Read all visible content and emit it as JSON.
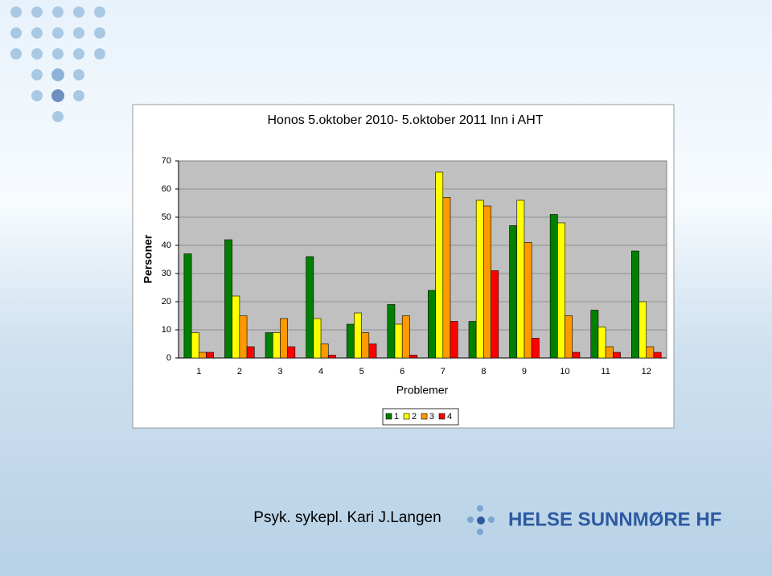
{
  "chart_data": {
    "type": "bar",
    "title": "Honos 5.oktober 2010- 5.oktober 2011 Inn i AHT",
    "y_label": "Personer",
    "x_label": "Problemer",
    "categories": [
      "1",
      "2",
      "3",
      "4",
      "5",
      "6",
      "7",
      "8",
      "9",
      "10",
      "11",
      "12"
    ],
    "series": [
      {
        "name": "1",
        "color": "#008000",
        "values": [
          37,
          42,
          9,
          36,
          12,
          19,
          24,
          13,
          47,
          51,
          17,
          38
        ]
      },
      {
        "name": "2",
        "color": "#ffff00",
        "values": [
          9,
          22,
          9,
          14,
          16,
          12,
          66,
          56,
          56,
          48,
          11,
          20
        ]
      },
      {
        "name": "3",
        "color": "#ff9900",
        "values": [
          2,
          15,
          14,
          5,
          9,
          15,
          57,
          54,
          41,
          15,
          4,
          4
        ]
      },
      {
        "name": "4",
        "color": "#ff0000",
        "values": [
          2,
          4,
          4,
          1,
          5,
          1,
          13,
          31,
          7,
          2,
          2,
          2
        ]
      }
    ],
    "ylim": [
      0,
      70
    ],
    "yticks": [
      0,
      10,
      20,
      30,
      40,
      50,
      60,
      70
    ],
    "grid": true,
    "legend": "bottom"
  },
  "footer": {
    "author": "Psyk. sykepl. Kari J.Langen",
    "logo": "HELSE SUNNMØRE HF"
  }
}
